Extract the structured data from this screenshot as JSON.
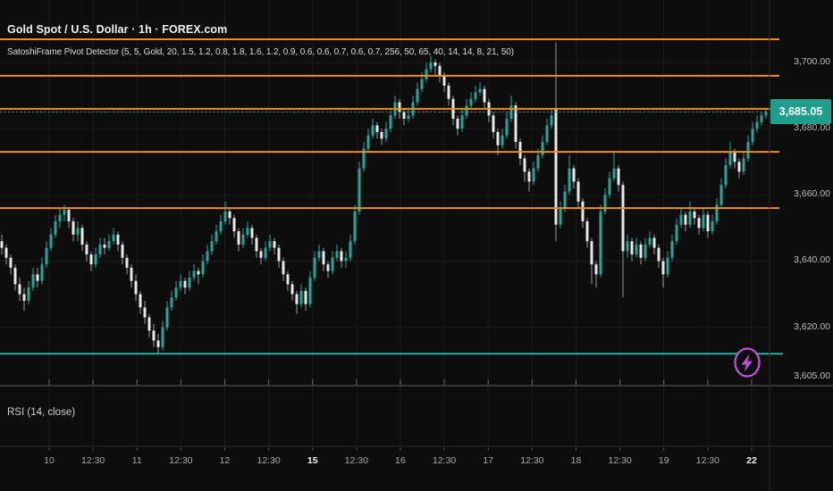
{
  "header": {
    "symbol_title": "Gold Spot / U.S. Dollar · 1h · FOREX.com",
    "indicator_label": "SatoshiFrame Pivot Detector (5, 5, Gold, 20, 1.5, 1.2, 0.8, 1.8, 1.6, 1.2, 0.9, 0.6, 0.6, 0.7, 0.6, 0.7, 256, 50, 65, 40, 14, 14, 8, 21, 50)"
  },
  "rsi_pane": {
    "label": "RSI (14, close)"
  },
  "price_axis": {
    "last_price_label": "3,685.05",
    "ticks": [
      {
        "label": "3,700.00",
        "price": 3700
      },
      {
        "label": "3,680.00",
        "price": 3680
      },
      {
        "label": "3,660.00",
        "price": 3660
      },
      {
        "label": "3,640.00",
        "price": 3640
      },
      {
        "label": "3,620.00",
        "price": 3620
      },
      {
        "label": "3,605.00",
        "price": 3605
      }
    ]
  },
  "time_axis": {
    "labels": [
      {
        "text": "10",
        "bold": false
      },
      {
        "text": "12:30",
        "bold": false
      },
      {
        "text": "11",
        "bold": false
      },
      {
        "text": "12:30",
        "bold": false
      },
      {
        "text": "12",
        "bold": false
      },
      {
        "text": "12:30",
        "bold": false
      },
      {
        "text": "15",
        "bold": true
      },
      {
        "text": "12:30",
        "bold": false
      },
      {
        "text": "16",
        "bold": false
      },
      {
        "text": "12:30",
        "bold": false
      },
      {
        "text": "17",
        "bold": false
      },
      {
        "text": "12:30",
        "bold": false
      },
      {
        "text": "18",
        "bold": false
      },
      {
        "text": "12:30",
        "bold": false
      },
      {
        "text": "19",
        "bold": false
      },
      {
        "text": "12:30",
        "bold": false
      },
      {
        "text": "22",
        "bold": true
      }
    ]
  },
  "colors": {
    "background": "#0d0d0d",
    "pivot_orange": "#ef8d1f",
    "support_teal": "#21b2a0",
    "price_line_teal": "#27a99b",
    "candle_up": "#26a69a",
    "candle_down_body": "#e8e8e8",
    "candle_down_wick": "#9a9a9a",
    "last_price_bg": "#1f9d8d",
    "icon_purple": "#bf4fd8",
    "grid": "#1b1b1b"
  },
  "icons": {
    "marker": "lightning-bolt-icon"
  },
  "chart_data": {
    "type": "candlestick",
    "title": "Gold Spot / U.S. Dollar",
    "interval": "1h",
    "exchange": "FOREX.com",
    "last_price": 3685.05,
    "y_axis": {
      "ylim": [
        3602.5,
        3712
      ],
      "tick_prices": [
        3700,
        3680,
        3660,
        3640,
        3620,
        3605
      ]
    },
    "x_tick_labels": [
      "10",
      "12:30",
      "11",
      "12:30",
      "12",
      "12:30",
      "15",
      "12:30",
      "16",
      "12:30",
      "17",
      "12:30",
      "18",
      "12:30",
      "19",
      "12:30",
      "22"
    ],
    "pivot_levels": [
      3707,
      3696,
      3686,
      3673,
      3656
    ],
    "support_levels": [
      3612
    ],
    "last_price_line": 3685.05,
    "legend": [
      "SatoshiFrame Pivot Detector",
      "RSI (14, close)"
    ],
    "candles_format": [
      "open",
      "high",
      "low",
      "close"
    ],
    "candles": [
      [
        3646,
        3648,
        3642,
        3644
      ],
      [
        3644,
        3645,
        3639,
        3641
      ],
      [
        3641,
        3642,
        3636,
        3638
      ],
      [
        3638,
        3639,
        3631,
        3633
      ],
      [
        3633,
        3635,
        3628,
        3630
      ],
      [
        3630,
        3632,
        3625,
        3628
      ],
      [
        3628,
        3634,
        3627,
        3632
      ],
      [
        3632,
        3638,
        3631,
        3636
      ],
      [
        3636,
        3638,
        3632,
        3634
      ],
      [
        3634,
        3641,
        3633,
        3639
      ],
      [
        3639,
        3646,
        3638,
        3644
      ],
      [
        3644,
        3650,
        3643,
        3648
      ],
      [
        3648,
        3654,
        3647,
        3652
      ],
      [
        3652,
        3656,
        3650,
        3654
      ],
      [
        3654,
        3657,
        3652,
        3655.5
      ],
      [
        3655.5,
        3656,
        3650,
        3652
      ],
      [
        3652,
        3653,
        3646,
        3648
      ],
      [
        3648,
        3652,
        3646,
        3650
      ],
      [
        3650,
        3651,
        3643,
        3645
      ],
      [
        3645,
        3646,
        3640,
        3642
      ],
      [
        3642,
        3643,
        3637,
        3639
      ],
      [
        3639,
        3644,
        3638,
        3642
      ],
      [
        3642,
        3647,
        3641,
        3645
      ],
      [
        3645,
        3647,
        3642,
        3644
      ],
      [
        3644,
        3648,
        3643,
        3646
      ],
      [
        3646,
        3650,
        3645,
        3648
      ],
      [
        3648,
        3649,
        3643,
        3645
      ],
      [
        3645,
        3646,
        3639,
        3641
      ],
      [
        3641,
        3642,
        3636,
        3638
      ],
      [
        3638,
        3639,
        3632,
        3634
      ],
      [
        3634,
        3636,
        3628,
        3630
      ],
      [
        3630,
        3631,
        3624,
        3626
      ],
      [
        3626,
        3628,
        3621,
        3623
      ],
      [
        3623,
        3624,
        3617,
        3619
      ],
      [
        3619,
        3621,
        3614,
        3616
      ],
      [
        3616,
        3618,
        3612,
        3614
      ],
      [
        3614,
        3622,
        3613,
        3620
      ],
      [
        3620,
        3628,
        3619,
        3626
      ],
      [
        3626,
        3631,
        3625,
        3629
      ],
      [
        3629,
        3634,
        3628,
        3632
      ],
      [
        3632,
        3636,
        3631,
        3634
      ],
      [
        3634,
        3635,
        3630,
        3632
      ],
      [
        3632,
        3637,
        3631,
        3635
      ],
      [
        3635,
        3639,
        3634,
        3637
      ],
      [
        3637,
        3638,
        3633,
        3636
      ],
      [
        3636,
        3642,
        3635,
        3640
      ],
      [
        3640,
        3645,
        3639,
        3643
      ],
      [
        3643,
        3648,
        3642,
        3646
      ],
      [
        3646,
        3651,
        3645,
        3649
      ],
      [
        3649,
        3654,
        3648,
        3652
      ],
      [
        3652,
        3658,
        3651,
        3655
      ],
      [
        3655,
        3656,
        3651,
        3653
      ],
      [
        3653,
        3654,
        3647,
        3649
      ],
      [
        3649,
        3650,
        3643,
        3645
      ],
      [
        3645,
        3650,
        3644,
        3648
      ],
      [
        3648,
        3652,
        3647,
        3650
      ],
      [
        3650,
        3651,
        3645,
        3647
      ],
      [
        3647,
        3648,
        3641,
        3643
      ],
      [
        3643,
        3644,
        3639,
        3641
      ],
      [
        3641,
        3646,
        3640,
        3644
      ],
      [
        3644,
        3648,
        3643,
        3646
      ],
      [
        3646,
        3647,
        3642,
        3644
      ],
      [
        3644,
        3645,
        3638,
        3640
      ],
      [
        3640,
        3641,
        3634,
        3636
      ],
      [
        3636,
        3637,
        3631,
        3633
      ],
      [
        3633,
        3634,
        3628,
        3630
      ],
      [
        3630,
        3631,
        3624,
        3627
      ],
      [
        3627,
        3633,
        3626,
        3631
      ],
      [
        3631,
        3632,
        3625,
        3627
      ],
      [
        3627,
        3637,
        3626,
        3635
      ],
      [
        3635,
        3643,
        3634,
        3641
      ],
      [
        3641,
        3645,
        3640,
        3643
      ],
      [
        3643,
        3644,
        3637,
        3639
      ],
      [
        3639,
        3640,
        3635,
        3637
      ],
      [
        3637,
        3643,
        3636,
        3641
      ],
      [
        3641,
        3645,
        3640,
        3643
      ],
      [
        3643,
        3644,
        3638,
        3640
      ],
      [
        3640,
        3643,
        3638,
        3641
      ],
      [
        3641,
        3648,
        3640,
        3646
      ],
      [
        3646,
        3657,
        3645,
        3655
      ],
      [
        3655,
        3670,
        3654,
        3668
      ],
      [
        3668,
        3676,
        3667,
        3674
      ],
      [
        3674,
        3680,
        3673,
        3678
      ],
      [
        3678,
        3683,
        3677,
        3681
      ],
      [
        3681,
        3682,
        3677,
        3679
      ],
      [
        3679,
        3680,
        3675,
        3677
      ],
      [
        3677,
        3682,
        3676,
        3680
      ],
      [
        3680,
        3686,
        3679,
        3684
      ],
      [
        3684,
        3690,
        3683,
        3688
      ],
      [
        3688,
        3689,
        3683,
        3685
      ],
      [
        3685,
        3686,
        3681,
        3683
      ],
      [
        3683,
        3686,
        3682,
        3684
      ],
      [
        3684,
        3690,
        3683,
        3688
      ],
      [
        3688,
        3694,
        3687,
        3692
      ],
      [
        3692,
        3697,
        3691,
        3695
      ],
      [
        3695,
        3700,
        3694,
        3698
      ],
      [
        3698,
        3702,
        3697,
        3700
      ],
      [
        3700,
        3701,
        3696,
        3699
      ],
      [
        3699,
        3700,
        3694,
        3696
      ],
      [
        3696,
        3697,
        3691,
        3693
      ],
      [
        3693,
        3694,
        3687,
        3689
      ],
      [
        3689,
        3690,
        3681,
        3683
      ],
      [
        3683,
        3684,
        3678,
        3680
      ],
      [
        3680,
        3686,
        3679,
        3684
      ],
      [
        3684,
        3689,
        3683,
        3687
      ],
      [
        3687,
        3691,
        3686,
        3689
      ],
      [
        3689,
        3693,
        3688,
        3691
      ],
      [
        3691,
        3694,
        3690,
        3692
      ],
      [
        3692,
        3693,
        3686,
        3688
      ],
      [
        3688,
        3689,
        3682,
        3684
      ],
      [
        3684,
        3685,
        3677,
        3679
      ],
      [
        3679,
        3680,
        3672,
        3675
      ],
      [
        3675,
        3680,
        3674,
        3678
      ],
      [
        3678,
        3685,
        3677,
        3683
      ],
      [
        3683,
        3690,
        3682,
        3687
      ],
      [
        3687,
        3688,
        3674,
        3676
      ],
      [
        3676,
        3677,
        3669,
        3671
      ],
      [
        3671,
        3672,
        3664,
        3667
      ],
      [
        3667,
        3668,
        3661,
        3664
      ],
      [
        3664,
        3670,
        3663,
        3668
      ],
      [
        3668,
        3674,
        3667,
        3672
      ],
      [
        3672,
        3678,
        3671,
        3676
      ],
      [
        3676,
        3683,
        3675,
        3681
      ],
      [
        3681,
        3686,
        3680,
        3684
      ],
      [
        3686,
        3706,
        3646,
        3651
      ],
      [
        3651,
        3658,
        3650,
        3656
      ],
      [
        3656,
        3663,
        3655,
        3661
      ],
      [
        3661,
        3672,
        3660,
        3668
      ],
      [
        3668,
        3669,
        3662,
        3664
      ],
      [
        3664,
        3665,
        3656,
        3658
      ],
      [
        3658,
        3659,
        3650,
        3652
      ],
      [
        3652,
        3653,
        3644,
        3646
      ],
      [
        3646,
        3647,
        3633,
        3639
      ],
      [
        3639,
        3640,
        3632,
        3636
      ],
      [
        3636,
        3657,
        3635,
        3655
      ],
      [
        3655,
        3662,
        3654,
        3660
      ],
      [
        3660,
        3667,
        3659,
        3665
      ],
      [
        3665,
        3673,
        3664,
        3668
      ],
      [
        3668,
        3669,
        3661,
        3663
      ],
      [
        3663,
        3664,
        3629,
        3643
      ],
      [
        3643,
        3648,
        3641,
        3646
      ],
      [
        3646,
        3647,
        3640,
        3642
      ],
      [
        3642,
        3647,
        3641,
        3645
      ],
      [
        3645,
        3646,
        3639,
        3641
      ],
      [
        3641,
        3647,
        3640,
        3645
      ],
      [
        3645,
        3649,
        3644,
        3647
      ],
      [
        3647,
        3648,
        3642,
        3644
      ],
      [
        3644,
        3645,
        3638,
        3640
      ],
      [
        3640,
        3641,
        3632,
        3636
      ],
      [
        3636,
        3643,
        3635,
        3641
      ],
      [
        3641,
        3648,
        3640,
        3646
      ],
      [
        3646,
        3653,
        3645,
        3651
      ],
      [
        3651,
        3656,
        3650,
        3654
      ],
      [
        3654,
        3655,
        3649,
        3651
      ],
      [
        3651,
        3658,
        3650,
        3655
      ],
      [
        3655,
        3656,
        3651,
        3653
      ],
      [
        3653,
        3654,
        3648,
        3650
      ],
      [
        3650,
        3656,
        3649,
        3654
      ],
      [
        3654,
        3655,
        3647,
        3649
      ],
      [
        3649,
        3654,
        3648,
        3652
      ],
      [
        3652,
        3659,
        3651,
        3657
      ],
      [
        3657,
        3665,
        3656,
        3663
      ],
      [
        3663,
        3671,
        3662,
        3669
      ],
      [
        3669,
        3676,
        3668,
        3673
      ],
      [
        3673,
        3674,
        3668,
        3670
      ],
      [
        3670,
        3671,
        3665,
        3667
      ],
      [
        3667,
        3673,
        3666,
        3671
      ],
      [
        3671,
        3678,
        3670,
        3676
      ],
      [
        3676,
        3682,
        3675,
        3680
      ],
      [
        3680,
        3684,
        3679,
        3682
      ],
      [
        3682,
        3685,
        3681,
        3684
      ],
      [
        3684,
        3686,
        3683,
        3685.05
      ]
    ]
  }
}
